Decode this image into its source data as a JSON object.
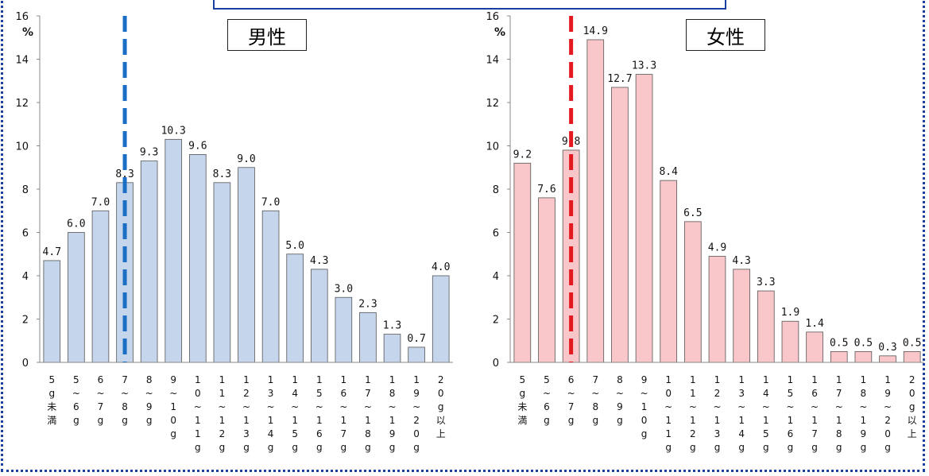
{
  "chart_data": [
    {
      "type": "bar",
      "title": "男性",
      "ylabel": "%",
      "ylim": [
        0,
        16
      ],
      "yticks": [
        0,
        2,
        4,
        6,
        8,
        10,
        12,
        14,
        16
      ],
      "categories": [
        "5g未満",
        "5~6g",
        "6~7g",
        "7~8g",
        "8~9g",
        "9~10g",
        "10~11g",
        "11~12g",
        "12~13g",
        "13~14g",
        "14~15g",
        "15~16g",
        "16~17g",
        "17~18g",
        "18~19g",
        "19~20g",
        "20g以上"
      ],
      "category_labels": [
        [
          "5",
          "g",
          "未",
          "満"
        ],
        [
          "5",
          "~",
          "6",
          "g"
        ],
        [
          "6",
          "~",
          "7",
          "g"
        ],
        [
          "7",
          "~",
          "8",
          "g"
        ],
        [
          "8",
          "~",
          "9",
          "g"
        ],
        [
          "9",
          "~",
          "1",
          "0",
          "g"
        ],
        [
          "1",
          "0",
          "~",
          "1",
          "1",
          "g"
        ],
        [
          "1",
          "1",
          "~",
          "1",
          "2",
          "g"
        ],
        [
          "1",
          "2",
          "~",
          "1",
          "3",
          "g"
        ],
        [
          "1",
          "3",
          "~",
          "1",
          "4",
          "g"
        ],
        [
          "1",
          "4",
          "~",
          "1",
          "5",
          "g"
        ],
        [
          "1",
          "5",
          "~",
          "1",
          "6",
          "g"
        ],
        [
          "1",
          "6",
          "~",
          "1",
          "7",
          "g"
        ],
        [
          "1",
          "7",
          "~",
          "1",
          "8",
          "g"
        ],
        [
          "1",
          "8",
          "~",
          "1",
          "9",
          "g"
        ],
        [
          "1",
          "9",
          "~",
          "2",
          "0",
          "g"
        ],
        [
          "2",
          "0",
          "g",
          "以",
          "上"
        ]
      ],
      "values": [
        4.7,
        6.0,
        7.0,
        8.3,
        9.3,
        10.3,
        9.6,
        8.3,
        9.0,
        7.0,
        5.0,
        4.3,
        3.0,
        2.3,
        1.3,
        0.7,
        4.0
      ],
      "data_labels": [
        "4.7",
        "6.0",
        "7.0",
        "8.3",
        "9.3",
        "10.3",
        "9.6",
        "8.3",
        "9.0",
        "7.0",
        "5.0",
        "4.3",
        "3.0",
        "2.3",
        "1.3",
        "0.7",
        "4.0"
      ],
      "bar_color": "#c5d5ec",
      "reference_line": {
        "position": 3.5,
        "color": "#1a6fc4",
        "style": "dashed"
      }
    },
    {
      "type": "bar",
      "title": "女性",
      "ylabel": "%",
      "ylim": [
        0,
        16
      ],
      "yticks": [
        0,
        2,
        4,
        6,
        8,
        10,
        12,
        14,
        16
      ],
      "categories": [
        "5g未満",
        "5~6g",
        "6~7g",
        "7~8g",
        "8~9g",
        "9~10g",
        "10~11g",
        "11~12g",
        "12~13g",
        "13~14g",
        "14~15g",
        "15~16g",
        "16~17g",
        "17~18g",
        "18~19g",
        "19~20g",
        "20g以上"
      ],
      "category_labels": [
        [
          "5",
          "g",
          "未",
          "満"
        ],
        [
          "5",
          "~",
          "6",
          "g"
        ],
        [
          "6",
          "~",
          "7",
          "g"
        ],
        [
          "7",
          "~",
          "8",
          "g"
        ],
        [
          "8",
          "~",
          "9",
          "g"
        ],
        [
          "9",
          "~",
          "1",
          "0",
          "g"
        ],
        [
          "1",
          "0",
          "~",
          "1",
          "1",
          "g"
        ],
        [
          "1",
          "1",
          "~",
          "1",
          "2",
          "g"
        ],
        [
          "1",
          "2",
          "~",
          "1",
          "3",
          "g"
        ],
        [
          "1",
          "3",
          "~",
          "1",
          "4",
          "g"
        ],
        [
          "1",
          "4",
          "~",
          "1",
          "5",
          "g"
        ],
        [
          "1",
          "5",
          "~",
          "1",
          "6",
          "g"
        ],
        [
          "1",
          "6",
          "~",
          "1",
          "7",
          "g"
        ],
        [
          "1",
          "7",
          "~",
          "1",
          "8",
          "g"
        ],
        [
          "1",
          "8",
          "~",
          "1",
          "9",
          "g"
        ],
        [
          "1",
          "9",
          "~",
          "2",
          "0",
          "g"
        ],
        [
          "2",
          "0",
          "g",
          "以",
          "上"
        ]
      ],
      "values": [
        9.2,
        7.6,
        9.8,
        14.9,
        12.7,
        13.3,
        8.4,
        6.5,
        4.9,
        4.3,
        3.3,
        1.9,
        1.4,
        0.5,
        0.5,
        0.3,
        0.5
      ],
      "data_labels": [
        "9.2",
        "7.6",
        "9.8",
        "14.9",
        "12.7",
        "13.3",
        "8.4",
        "6.5",
        "4.9",
        "4.3",
        "3.3",
        "1.9",
        "1.4",
        "0.5",
        "0.5",
        "0.3",
        "0.5"
      ],
      "bar_color": "#f9c6c9",
      "reference_line": {
        "position": 2.5,
        "color": "#e3191f",
        "style": "dashed"
      }
    }
  ]
}
